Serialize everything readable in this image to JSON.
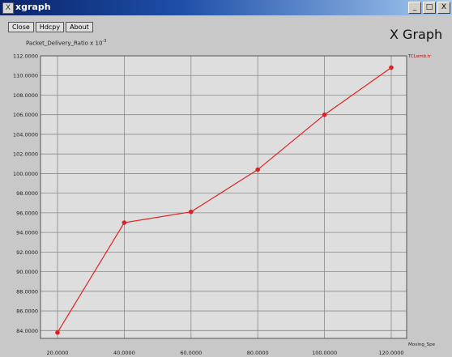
{
  "window": {
    "title": "xgraph",
    "app_icon": "X",
    "buttons": [
      "_",
      "□",
      "X"
    ]
  },
  "toolbar": {
    "close_label": "Close",
    "hdcpy_label": "Hdcpy",
    "about_label": "About"
  },
  "brand": "X Graph",
  "chart_data": {
    "type": "line",
    "ylabel": "Packet_Delivery_Ratio x 10",
    "ylabel_exponent": "-3",
    "xlabel": "Moving_Spe",
    "ylim": [
      83.2,
      112
    ],
    "xlim": [
      20,
      120
    ],
    "grid": true,
    "y_ticks": [
      "112.0000",
      "110.0000",
      "108.0000",
      "106.0000",
      "104.0000",
      "102.0000",
      "100.0000",
      "98.0000",
      "96.0000",
      "94.0000",
      "92.0000",
      "90.0000",
      "88.0000",
      "86.0000",
      "84.0000"
    ],
    "y_tick_values": [
      112,
      110,
      108,
      106,
      104,
      102,
      100,
      98,
      96,
      94,
      92,
      90,
      88,
      86,
      84
    ],
    "x_ticks": [
      "20.0000",
      "40.0000",
      "60.0000",
      "80.0000",
      "100.0000",
      "120.0000"
    ],
    "x_tick_values": [
      20,
      40,
      60,
      80,
      100,
      120
    ],
    "series": [
      {
        "name": "TCLemb.tr",
        "color": "#e02020",
        "x": [
          20,
          40,
          60,
          80,
          100,
          120
        ],
        "y": [
          83.8,
          95.0,
          96.1,
          100.4,
          106.0,
          110.8
        ]
      }
    ]
  }
}
